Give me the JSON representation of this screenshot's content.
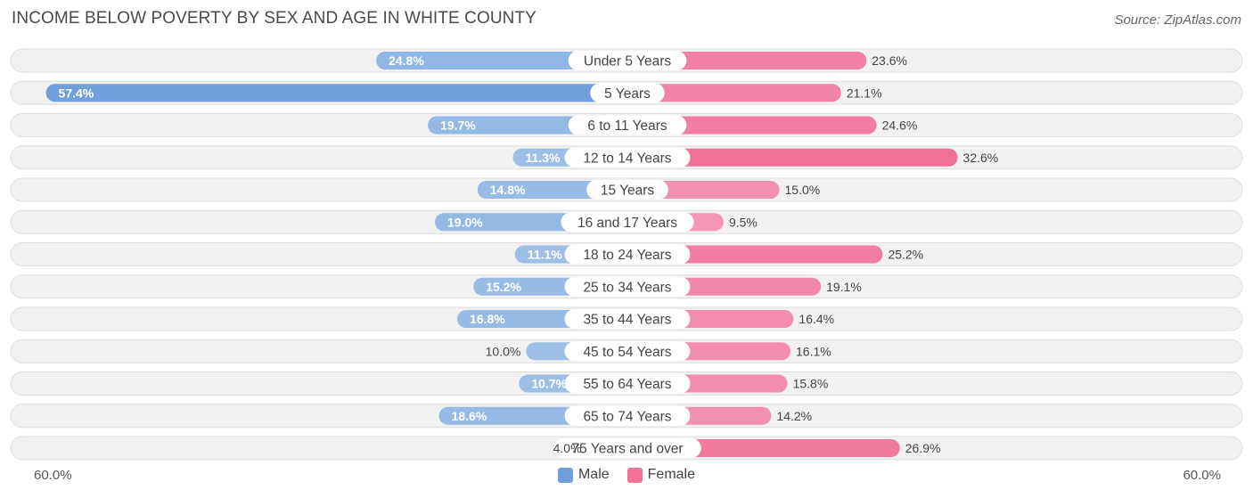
{
  "header": {
    "title": "INCOME BELOW POVERTY BY SEX AND AGE IN WHITE COUNTY",
    "source": "Source: ZipAtlas.com"
  },
  "colors": {
    "male": "#6fa0dc",
    "male_light": "#a8c6ea",
    "female": "#f07098",
    "female_light": "#f6a9c2",
    "row_bg": "#f1f1f1",
    "row_border": "#dedede"
  },
  "axis": {
    "left_label": "60.0%",
    "right_label": "60.0%"
  },
  "legend": {
    "male": "Male",
    "female": "Female"
  },
  "chart_data": {
    "type": "bar",
    "orientation": "horizontal-diverging",
    "title": "INCOME BELOW POVERTY BY SEX AND AGE IN WHITE COUNTY",
    "xlim": [
      -60,
      60
    ],
    "categories": [
      "Under 5 Years",
      "5 Years",
      "6 to 11 Years",
      "12 to 14 Years",
      "15 Years",
      "16 and 17 Years",
      "18 to 24 Years",
      "25 to 34 Years",
      "35 to 44 Years",
      "45 to 54 Years",
      "55 to 64 Years",
      "65 to 74 Years",
      "75 Years and over"
    ],
    "series": [
      {
        "name": "Male",
        "values": [
          24.8,
          57.4,
          19.7,
          11.3,
          14.8,
          19.0,
          11.1,
          15.2,
          16.8,
          10.0,
          10.7,
          18.6,
          4.0
        ],
        "labels": [
          "24.8%",
          "57.4%",
          "19.7%",
          "11.3%",
          "14.8%",
          "19.0%",
          "11.1%",
          "15.2%",
          "16.8%",
          "10.0%",
          "10.7%",
          "18.6%",
          "4.0%"
        ]
      },
      {
        "name": "Female",
        "values": [
          23.6,
          21.1,
          24.6,
          32.6,
          15.0,
          9.5,
          25.2,
          19.1,
          16.4,
          16.1,
          15.8,
          14.2,
          26.9
        ],
        "labels": [
          "23.6%",
          "21.1%",
          "24.6%",
          "32.6%",
          "15.0%",
          "9.5%",
          "25.2%",
          "19.1%",
          "16.4%",
          "16.1%",
          "15.8%",
          "14.2%",
          "26.9%"
        ]
      }
    ]
  }
}
